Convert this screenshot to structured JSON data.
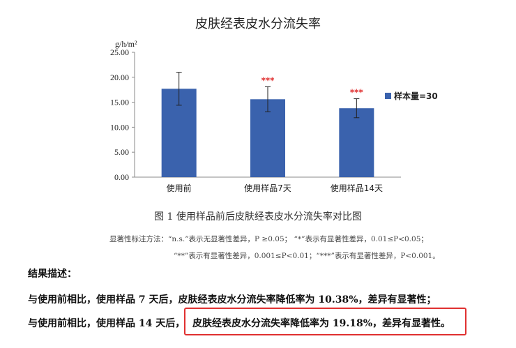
{
  "chart_data": {
    "type": "bar",
    "title": "皮肤经表皮水分流失率",
    "ylabel": "g/h/m²",
    "ylim": [
      0,
      25
    ],
    "yticks": [
      "0.00",
      "5.00",
      "10.00",
      "15.00",
      "20.00",
      "25.00"
    ],
    "categories": [
      "使用前",
      "使用样品7天",
      "使用样品14天"
    ],
    "series": [
      {
        "name": "样本量=30",
        "values": [
          17.7,
          15.6,
          13.8
        ],
        "errors": [
          3.3,
          2.5,
          1.9
        ]
      }
    ],
    "significance": [
      "",
      "***",
      "***"
    ],
    "legend_position": "right",
    "grid": false,
    "colors": {
      "bar": "#3a62ad",
      "significance": "#e03030"
    }
  },
  "caption": "图 1  使用样品前后皮肤经表皮水分流失率对比图",
  "notes": {
    "line1": "显著性标注方法：“n.s.”表示无显著性差异，P ≥0.05；  “*”表示有显著性差异，0.01≤P<0.05；",
    "line2": "“**”表示有显著性差异，0.001≤P<0.01；“***”表示有显著性差异，P<0.001。"
  },
  "results": {
    "heading": "结果描述：",
    "line1": "与使用前相比，使用样品 7 天后，皮肤经表皮水分流失率降低率为 10.38%，差异有显著性；",
    "line2_prefix": "与使用前相比，使用样品 14 天后，",
    "line2_highlight": "皮肤经表皮水分流失率降低率为 19.18%，差异有显著性。"
  }
}
